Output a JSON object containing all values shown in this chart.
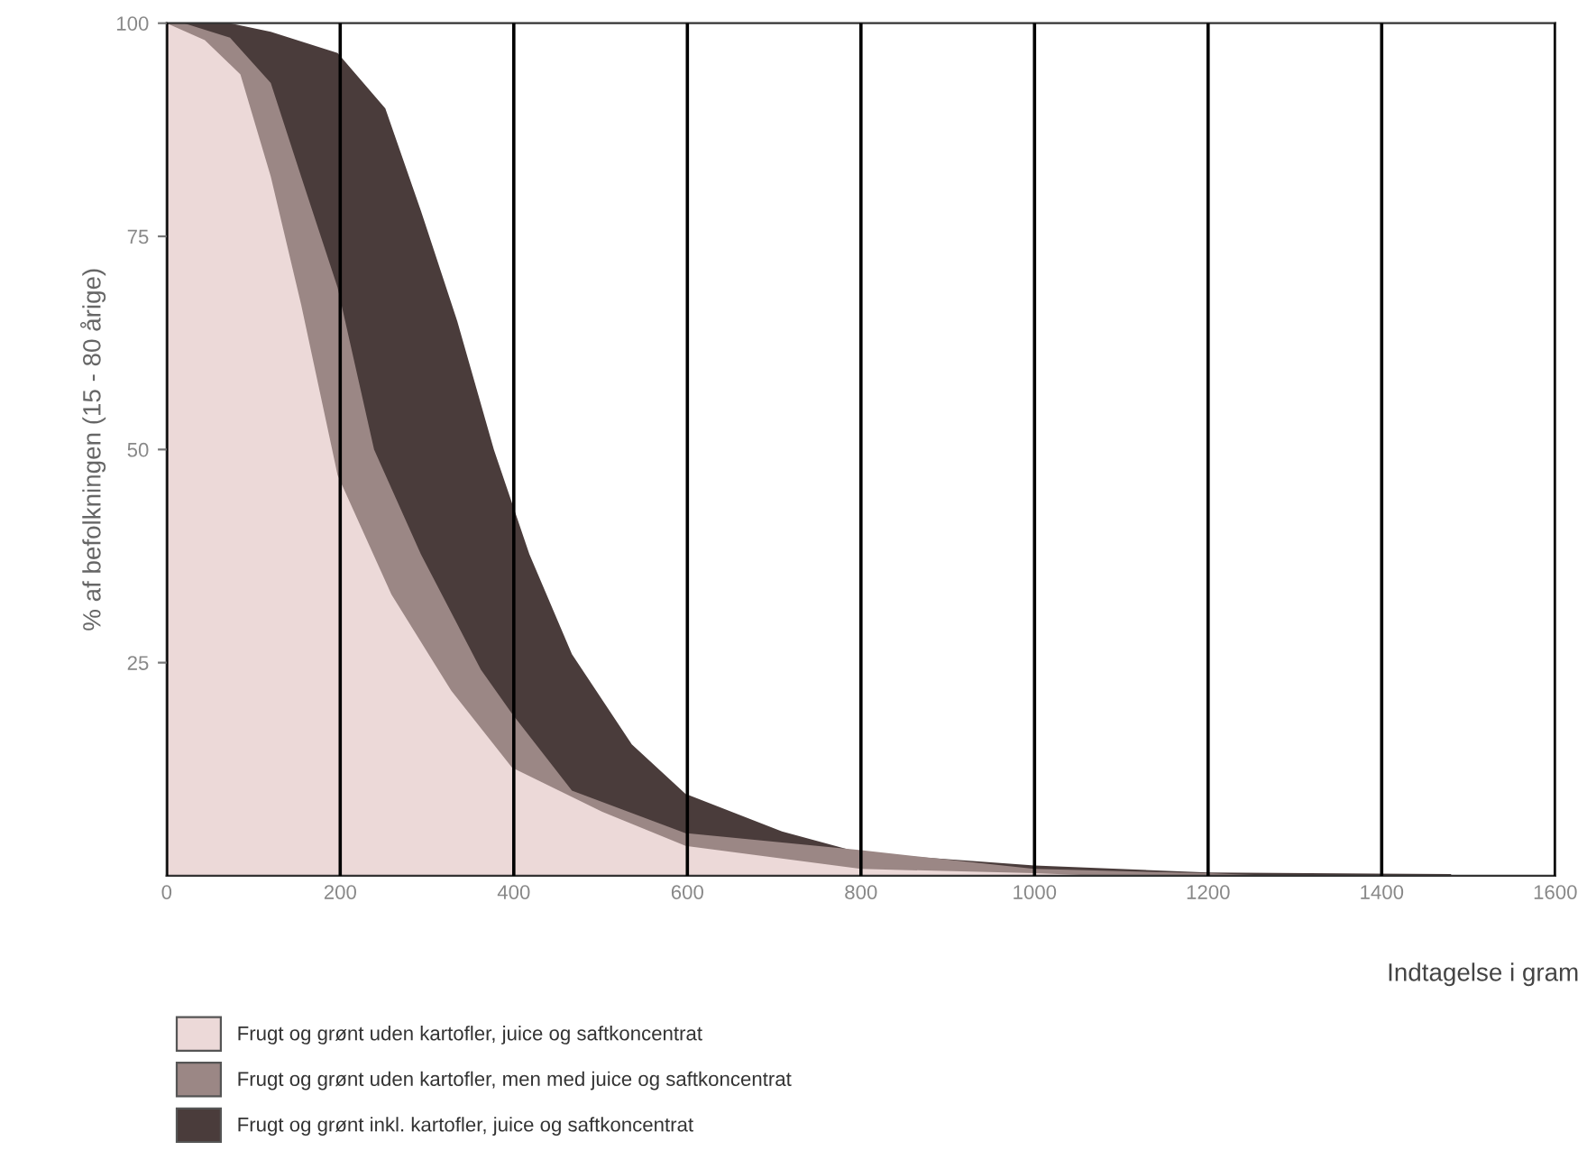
{
  "chart_data": {
    "type": "area",
    "xlabel": "Indtagelse i gram",
    "ylabel": "% af befolkningen (15 - 80 årige)",
    "xlim": [
      0,
      1600
    ],
    "xticks": [
      0,
      200,
      400,
      600,
      800,
      1000,
      1200,
      1400,
      1600
    ],
    "ylim": [
      0,
      100
    ],
    "yticks": [
      25,
      50,
      75,
      100
    ],
    "grid": "x",
    "legend": "bottom left",
    "series": [
      {
        "name": "Frugt og grønt inkl. kartofler, juice og saftkoncentrat",
        "color": "#4a3c3b",
        "x": [
          0,
          73,
          120,
          197,
          252,
          293,
          335,
          377,
          418,
          467,
          536,
          598,
          709,
          800,
          1000,
          1200,
          1480
        ],
        "values": [
          100,
          100,
          99,
          96.5,
          90,
          78,
          65,
          50,
          37.7,
          26,
          15.4,
          9.6,
          5.2,
          2.7,
          1.2,
          0.4,
          0.2
        ]
      },
      {
        "name": "Frugt og grønt uden kartofler, men med juice og saftkoncentrat",
        "color": "#9b8785",
        "x": [
          0,
          20,
          73,
          120,
          155,
          197,
          239,
          293,
          362,
          398,
          467,
          598,
          800,
          1000,
          1200,
          1280
        ],
        "values": [
          100,
          100,
          98.3,
          93,
          82,
          69,
          50,
          37.7,
          24.2,
          19,
          10,
          5,
          3,
          0.8,
          0.3,
          0
        ]
      },
      {
        "name": "Frugt og grønt uden kartofler, juice og saftkoncentrat",
        "color": "#ecd9d8",
        "x": [
          0,
          44,
          85,
          120,
          155,
          197,
          259,
          328,
          398,
          502,
          598,
          800,
          1000,
          1080
        ],
        "values": [
          100,
          98,
          94,
          82,
          67,
          47,
          33,
          21.7,
          12.7,
          7.5,
          3.5,
          0.8,
          0.3,
          0
        ]
      }
    ]
  }
}
